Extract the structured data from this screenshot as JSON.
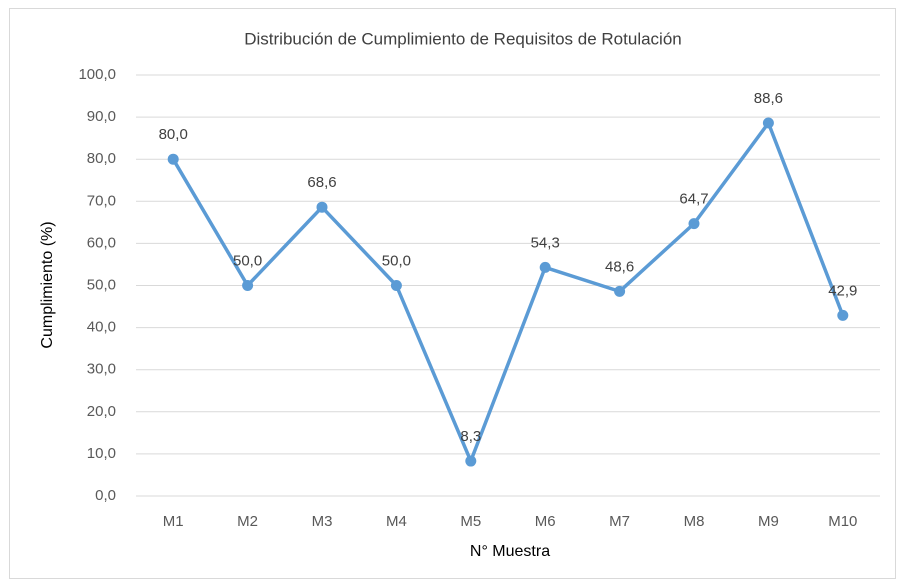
{
  "chart_data": {
    "type": "line",
    "title": "Distribución de Cumplimiento de Requisitos de Rotulación",
    "x_label": "N° Muestra",
    "y_label": "Cumplimiento (%)",
    "categories": [
      "M1",
      "M2",
      "M3",
      "M4",
      "M5",
      "M6",
      "M7",
      "M8",
      "M9",
      "M10"
    ],
    "series": [
      {
        "name": "Cumplimiento (%)",
        "color": "#5b9bd5",
        "values": [
          80,
          50,
          68.6,
          50,
          8.3,
          54.3,
          48.6,
          64.7,
          88.6,
          42.9
        ],
        "value_labels": [
          "80,0",
          "50,0",
          "68,6",
          "50,0",
          "8,3",
          "54,3",
          "48,6",
          "64,7",
          "88,6",
          "42,9"
        ]
      }
    ],
    "ylim": [
      0,
      100
    ],
    "yticks": [
      {
        "value": 0,
        "label": "0,0"
      },
      {
        "value": 10,
        "label": "10,0"
      },
      {
        "value": 20,
        "label": "20,0"
      },
      {
        "value": 30,
        "label": "30,0"
      },
      {
        "value": 40,
        "label": "40,0"
      },
      {
        "value": 50,
        "label": "50,0"
      },
      {
        "value": 60,
        "label": "60,0"
      },
      {
        "value": 70,
        "label": "70,0"
      },
      {
        "value": 80,
        "label": "80,0"
      },
      {
        "value": 90,
        "label": "90,0"
      },
      {
        "value": 100,
        "label": "100,0"
      }
    ],
    "grid": true
  }
}
